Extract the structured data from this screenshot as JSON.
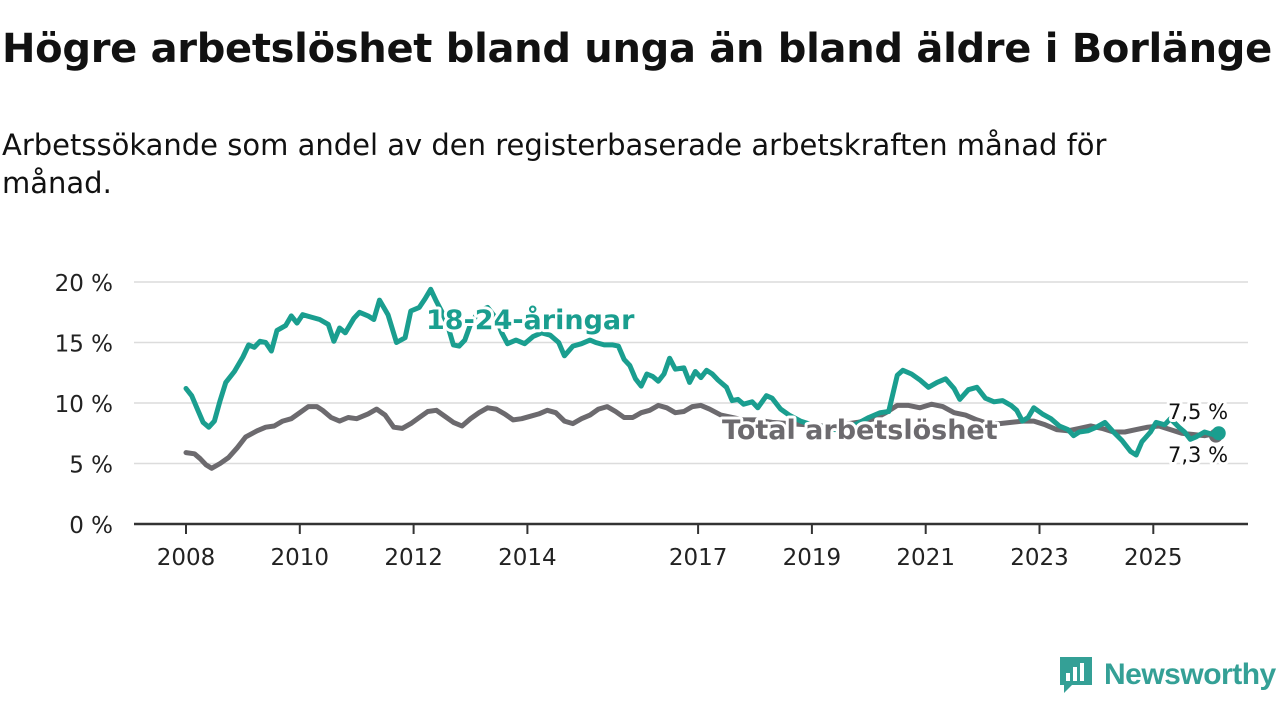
{
  "title": "Högre arbetslöshet bland unga än bland äldre i Borlänge",
  "subtitle": "Arbetssökande som andel av den registerbaserade arbetskraften månad för månad.",
  "brand": "Newsworthy",
  "colors": {
    "youth": "#1a9e8f",
    "total": "#6c6a6e",
    "grid": "#dcdcdc",
    "axis": "#333333",
    "brand": "#34a096"
  },
  "chart_data": {
    "type": "line",
    "title": "Högre arbetslöshet bland unga än bland äldre i Borlänge",
    "xlabel": "",
    "ylabel": "",
    "ylim": [
      0,
      20
    ],
    "xlim": [
      2008,
      2026.6
    ],
    "grid": true,
    "y_ticks": [
      {
        "value": 0,
        "label": "0 %"
      },
      {
        "value": 5,
        "label": "5 %"
      },
      {
        "value": 10,
        "label": "10 %"
      },
      {
        "value": 15,
        "label": "15 %"
      },
      {
        "value": 20,
        "label": "20 %"
      }
    ],
    "x_ticks": [
      {
        "value": 2008,
        "label": "2008"
      },
      {
        "value": 2010,
        "label": "2010"
      },
      {
        "value": 2012,
        "label": "2012"
      },
      {
        "value": 2014,
        "label": "2014"
      },
      {
        "value": 2017,
        "label": "2017"
      },
      {
        "value": 2019,
        "label": "2019"
      },
      {
        "value": 2021,
        "label": "2021"
      },
      {
        "value": 2023,
        "label": "2023"
      },
      {
        "value": 2025,
        "label": "2025"
      }
    ],
    "series": [
      {
        "name": "Total arbetslöshet",
        "label": "Total arbetslöshet",
        "color_key": "total",
        "end_label": "7,3 %",
        "points": [
          [
            2008.0,
            5.9
          ],
          [
            2008.15,
            5.8
          ],
          [
            2008.25,
            5.4
          ],
          [
            2008.35,
            4.9
          ],
          [
            2008.45,
            4.6
          ],
          [
            2008.6,
            5.0
          ],
          [
            2008.75,
            5.5
          ],
          [
            2008.9,
            6.3
          ],
          [
            2009.05,
            7.2
          ],
          [
            2009.25,
            7.7
          ],
          [
            2009.4,
            8.0
          ],
          [
            2009.55,
            8.1
          ],
          [
            2009.7,
            8.5
          ],
          [
            2009.85,
            8.7
          ],
          [
            2010.0,
            9.2
          ],
          [
            2010.15,
            9.7
          ],
          [
            2010.3,
            9.7
          ],
          [
            2010.4,
            9.4
          ],
          [
            2010.55,
            8.8
          ],
          [
            2010.7,
            8.5
          ],
          [
            2010.85,
            8.8
          ],
          [
            2011.0,
            8.7
          ],
          [
            2011.2,
            9.1
          ],
          [
            2011.35,
            9.5
          ],
          [
            2011.5,
            9.0
          ],
          [
            2011.65,
            8.0
          ],
          [
            2011.8,
            7.9
          ],
          [
            2011.95,
            8.3
          ],
          [
            2012.1,
            8.8
          ],
          [
            2012.25,
            9.3
          ],
          [
            2012.4,
            9.4
          ],
          [
            2012.55,
            8.9
          ],
          [
            2012.7,
            8.4
          ],
          [
            2012.85,
            8.1
          ],
          [
            2013.0,
            8.7
          ],
          [
            2013.15,
            9.2
          ],
          [
            2013.3,
            9.6
          ],
          [
            2013.45,
            9.5
          ],
          [
            2013.6,
            9.1
          ],
          [
            2013.75,
            8.6
          ],
          [
            2013.9,
            8.7
          ],
          [
            2014.05,
            8.9
          ],
          [
            2014.2,
            9.1
          ],
          [
            2014.35,
            9.4
          ],
          [
            2014.5,
            9.2
          ],
          [
            2014.65,
            8.5
          ],
          [
            2014.8,
            8.3
          ],
          [
            2014.95,
            8.7
          ],
          [
            2015.1,
            9.0
          ],
          [
            2015.25,
            9.5
          ],
          [
            2015.4,
            9.7
          ],
          [
            2015.55,
            9.3
          ],
          [
            2015.7,
            8.8
          ],
          [
            2015.85,
            8.8
          ],
          [
            2016.0,
            9.2
          ],
          [
            2016.15,
            9.4
          ],
          [
            2016.3,
            9.8
          ],
          [
            2016.45,
            9.6
          ],
          [
            2016.6,
            9.2
          ],
          [
            2016.75,
            9.3
          ],
          [
            2016.9,
            9.7
          ],
          [
            2017.05,
            9.8
          ],
          [
            2017.2,
            9.5
          ],
          [
            2017.4,
            9.0
          ],
          [
            2017.6,
            8.8
          ],
          [
            2017.8,
            8.6
          ],
          [
            2018.0,
            8.6
          ],
          [
            2018.3,
            8.4
          ],
          [
            2018.6,
            8.3
          ],
          [
            2018.9,
            8.2
          ],
          [
            2019.2,
            8.1
          ],
          [
            2019.5,
            8.2
          ],
          [
            2019.8,
            8.4
          ],
          [
            2020.1,
            8.7
          ],
          [
            2020.3,
            9.2
          ],
          [
            2020.5,
            9.8
          ],
          [
            2020.7,
            9.8
          ],
          [
            2020.9,
            9.6
          ],
          [
            2021.1,
            9.9
          ],
          [
            2021.3,
            9.7
          ],
          [
            2021.5,
            9.2
          ],
          [
            2021.7,
            9.0
          ],
          [
            2021.9,
            8.6
          ],
          [
            2022.1,
            8.3
          ],
          [
            2022.3,
            8.3
          ],
          [
            2022.5,
            8.4
          ],
          [
            2022.7,
            8.5
          ],
          [
            2022.9,
            8.5
          ],
          [
            2023.1,
            8.2
          ],
          [
            2023.3,
            7.8
          ],
          [
            2023.5,
            7.7
          ],
          [
            2023.7,
            7.9
          ],
          [
            2023.9,
            8.1
          ],
          [
            2024.1,
            7.9
          ],
          [
            2024.3,
            7.6
          ],
          [
            2024.5,
            7.6
          ],
          [
            2024.7,
            7.8
          ],
          [
            2024.9,
            8.0
          ],
          [
            2025.1,
            8.1
          ],
          [
            2025.3,
            7.8
          ],
          [
            2025.5,
            7.5
          ],
          [
            2025.7,
            7.4
          ],
          [
            2025.9,
            7.3
          ],
          [
            2026.0,
            7.4
          ],
          [
            2026.1,
            7.3
          ]
        ]
      },
      {
        "name": "18-24-åringar",
        "label": "18-24-åringar",
        "color_key": "youth",
        "end_label": "7,5 %",
        "points": [
          [
            2008.0,
            11.2
          ],
          [
            2008.1,
            10.6
          ],
          [
            2008.2,
            9.5
          ],
          [
            2008.3,
            8.4
          ],
          [
            2008.4,
            8.0
          ],
          [
            2008.5,
            8.5
          ],
          [
            2008.6,
            10.2
          ],
          [
            2008.7,
            11.7
          ],
          [
            2008.85,
            12.6
          ],
          [
            2009.0,
            13.8
          ],
          [
            2009.1,
            14.8
          ],
          [
            2009.2,
            14.6
          ],
          [
            2009.3,
            15.1
          ],
          [
            2009.4,
            15.0
          ],
          [
            2009.5,
            14.3
          ],
          [
            2009.6,
            16.0
          ],
          [
            2009.75,
            16.4
          ],
          [
            2009.85,
            17.2
          ],
          [
            2009.95,
            16.6
          ],
          [
            2010.05,
            17.3
          ],
          [
            2010.2,
            17.1
          ],
          [
            2010.35,
            16.9
          ],
          [
            2010.5,
            16.5
          ],
          [
            2010.6,
            15.1
          ],
          [
            2010.7,
            16.2
          ],
          [
            2010.8,
            15.8
          ],
          [
            2010.95,
            17.0
          ],
          [
            2011.05,
            17.5
          ],
          [
            2011.2,
            17.2
          ],
          [
            2011.3,
            16.9
          ],
          [
            2011.4,
            18.5
          ],
          [
            2011.55,
            17.3
          ],
          [
            2011.7,
            15.0
          ],
          [
            2011.85,
            15.4
          ],
          [
            2011.95,
            17.6
          ],
          [
            2012.1,
            17.9
          ],
          [
            2012.2,
            18.6
          ],
          [
            2012.3,
            19.4
          ],
          [
            2012.4,
            18.4
          ],
          [
            2012.5,
            17.5
          ],
          [
            2012.6,
            16.4
          ],
          [
            2012.7,
            14.8
          ],
          [
            2012.8,
            14.7
          ],
          [
            2012.9,
            15.2
          ],
          [
            2013.0,
            16.5
          ],
          [
            2013.15,
            17.6
          ],
          [
            2013.3,
            17.9
          ],
          [
            2013.45,
            17.0
          ],
          [
            2013.55,
            15.8
          ],
          [
            2013.65,
            14.9
          ],
          [
            2013.8,
            15.2
          ],
          [
            2013.95,
            14.9
          ],
          [
            2014.1,
            15.5
          ],
          [
            2014.25,
            15.8
          ],
          [
            2014.4,
            15.6
          ],
          [
            2014.55,
            15.0
          ],
          [
            2014.65,
            13.9
          ],
          [
            2014.8,
            14.7
          ],
          [
            2014.95,
            14.9
          ],
          [
            2015.1,
            15.2
          ],
          [
            2015.2,
            15.0
          ],
          [
            2015.35,
            14.8
          ],
          [
            2015.5,
            14.8
          ],
          [
            2015.6,
            14.7
          ],
          [
            2015.7,
            13.6
          ],
          [
            2015.8,
            13.1
          ],
          [
            2015.9,
            12.0
          ],
          [
            2016.0,
            11.4
          ],
          [
            2016.1,
            12.4
          ],
          [
            2016.2,
            12.2
          ],
          [
            2016.3,
            11.8
          ],
          [
            2016.4,
            12.4
          ],
          [
            2016.5,
            13.7
          ],
          [
            2016.6,
            12.8
          ],
          [
            2016.75,
            12.9
          ],
          [
            2016.85,
            11.7
          ],
          [
            2016.95,
            12.6
          ],
          [
            2017.05,
            12.1
          ],
          [
            2017.15,
            12.7
          ],
          [
            2017.25,
            12.4
          ],
          [
            2017.35,
            11.9
          ],
          [
            2017.5,
            11.3
          ],
          [
            2017.6,
            10.2
          ],
          [
            2017.7,
            10.3
          ],
          [
            2017.8,
            9.9
          ],
          [
            2017.95,
            10.1
          ],
          [
            2018.05,
            9.6
          ],
          [
            2018.2,
            10.6
          ],
          [
            2018.3,
            10.4
          ],
          [
            2018.45,
            9.5
          ],
          [
            2018.6,
            9.0
          ],
          [
            2018.8,
            8.5
          ],
          [
            2019.0,
            8.2
          ],
          [
            2019.2,
            8.0
          ],
          [
            2019.4,
            7.8
          ],
          [
            2019.6,
            7.9
          ],
          [
            2019.8,
            8.3
          ],
          [
            2020.0,
            8.8
          ],
          [
            2020.2,
            9.2
          ],
          [
            2020.35,
            9.3
          ],
          [
            2020.5,
            12.3
          ],
          [
            2020.6,
            12.7
          ],
          [
            2020.75,
            12.4
          ],
          [
            2020.9,
            11.9
          ],
          [
            2021.05,
            11.3
          ],
          [
            2021.2,
            11.7
          ],
          [
            2021.35,
            12.0
          ],
          [
            2021.5,
            11.2
          ],
          [
            2021.6,
            10.3
          ],
          [
            2021.75,
            11.1
          ],
          [
            2021.9,
            11.3
          ],
          [
            2022.05,
            10.4
          ],
          [
            2022.2,
            10.1
          ],
          [
            2022.35,
            10.2
          ],
          [
            2022.5,
            9.8
          ],
          [
            2022.6,
            9.4
          ],
          [
            2022.7,
            8.5
          ],
          [
            2022.8,
            8.8
          ],
          [
            2022.9,
            9.6
          ],
          [
            2023.05,
            9.1
          ],
          [
            2023.2,
            8.7
          ],
          [
            2023.35,
            8.1
          ],
          [
            2023.5,
            7.8
          ],
          [
            2023.6,
            7.3
          ],
          [
            2023.7,
            7.6
          ],
          [
            2023.85,
            7.7
          ],
          [
            2024.0,
            8.0
          ],
          [
            2024.15,
            8.4
          ],
          [
            2024.3,
            7.6
          ],
          [
            2024.45,
            6.9
          ],
          [
            2024.6,
            6.0
          ],
          [
            2024.7,
            5.7
          ],
          [
            2024.8,
            6.8
          ],
          [
            2024.95,
            7.6
          ],
          [
            2025.05,
            8.4
          ],
          [
            2025.2,
            8.2
          ],
          [
            2025.3,
            8.7
          ],
          [
            2025.45,
            8.0
          ],
          [
            2025.55,
            7.6
          ],
          [
            2025.65,
            7.0
          ],
          [
            2025.75,
            7.2
          ],
          [
            2025.9,
            7.6
          ],
          [
            2026.05,
            7.4
          ],
          [
            2026.15,
            7.5
          ]
        ]
      }
    ]
  }
}
